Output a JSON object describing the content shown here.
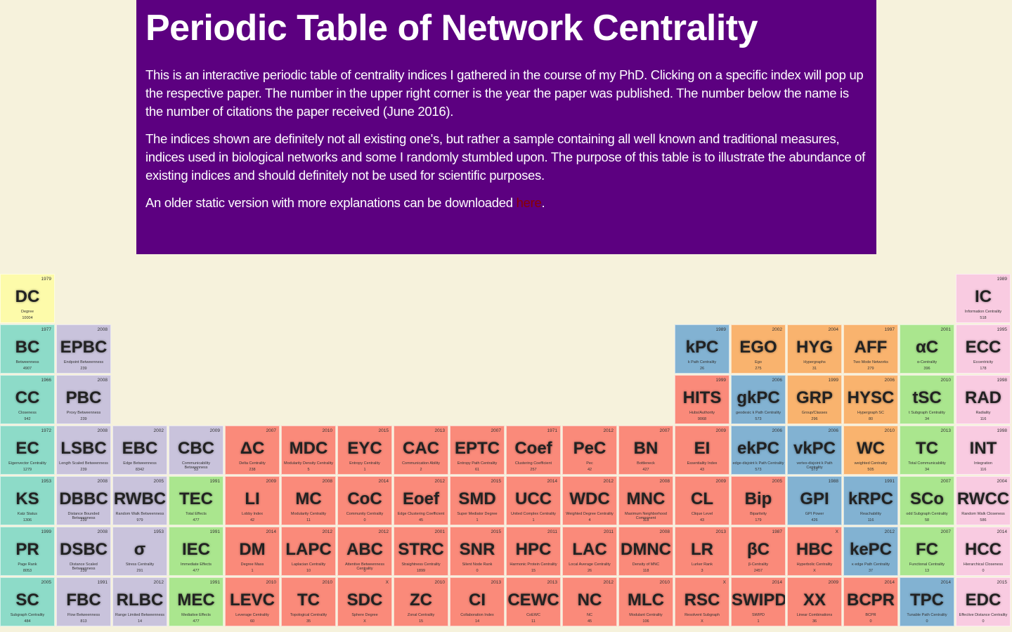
{
  "header": {
    "title": "Periodic Table of Network Centrality",
    "paragraphs": [
      "This is an interactive periodic table of centrality indices I gathered in the course of my PhD. Clicking on a specific index will pop up the respective paper. The number in the upper right corner is the year the paper was published. The number below the name is the number of citations the paper received (June 2016).",
      "The indices shown are definitely not all existing one's, but rather a sample containing all well known and traditional measures, indices used in biological networks and some I randomly stumbled upon. The purpose of this table is to illustrate the abundance of existing indices and should definitely not be used for scientific purposes."
    ],
    "download": {
      "text": "An older static version with more explanations can be downloaded ",
      "link": "here",
      "end": "."
    }
  },
  "table": {
    "rows": [
      [
        {
          "symbol": "DC",
          "year": "1979",
          "name": "Degree",
          "citations": "10004",
          "color": "#fdfbaa"
        },
        null,
        null,
        null,
        null,
        null,
        null,
        null,
        null,
        null,
        null,
        null,
        null,
        null,
        null,
        null,
        null,
        {
          "symbol": "IC",
          "year": "1989",
          "name": "Information Centrality",
          "citations": "518",
          "color": "#f9cbe1"
        }
      ],
      [
        {
          "symbol": "BC",
          "year": "1977",
          "name": "Betweenness",
          "citations": "4907",
          "color": "#8ddbc8"
        },
        {
          "symbol": "EPBC",
          "year": "2008",
          "name": "Endpoint Betweenness",
          "citations": "239",
          "color": "#c9c3dc"
        },
        null,
        null,
        null,
        null,
        null,
        null,
        null,
        null,
        null,
        null,
        {
          "symbol": "kPC",
          "year": "1989",
          "name": "k Path Centrality",
          "citations": "26",
          "color": "#82b2d2"
        },
        {
          "symbol": "EGO",
          "year": "2002",
          "name": "Ego",
          "citations": "275",
          "color": "#f9b36e"
        },
        {
          "symbol": "HYG",
          "year": "2004",
          "name": "Hypergraphs",
          "citations": "31",
          "color": "#f9b36e"
        },
        {
          "symbol": "AFF",
          "year": "1997",
          "name": "Two Mode Networks",
          "citations": "279",
          "color": "#f9b36e"
        },
        {
          "symbol": "αC",
          "year": "2001",
          "name": "α-Centrality",
          "citations": "396",
          "color": "#aae68e"
        },
        {
          "symbol": "ECC",
          "year": "1995",
          "name": "Eccentricity",
          "citations": "178",
          "color": "#f9cbe1"
        }
      ],
      [
        {
          "symbol": "CC",
          "year": "1966",
          "name": "Closeness",
          "citations": "942",
          "color": "#8ddbc8"
        },
        {
          "symbol": "PBC",
          "year": "2008",
          "name": "Proxy Betweenness",
          "citations": "239",
          "color": "#c9c3dc"
        },
        null,
        null,
        null,
        null,
        null,
        null,
        null,
        null,
        null,
        null,
        {
          "symbol": "HITS",
          "year": "1999",
          "name": "Hubs/Authority",
          "citations": "9068",
          "color": "#fa8a7a"
        },
        {
          "symbol": "gkPC",
          "year": "2006",
          "name": "geodesic k Path Centrality",
          "citations": "573",
          "color": "#82b2d2"
        },
        {
          "symbol": "GRP",
          "year": "1999",
          "name": "Group/Classes",
          "citations": "296",
          "color": "#f9b36e"
        },
        {
          "symbol": "HYSC",
          "year": "2006",
          "name": "Hypergraph SC",
          "citations": "80",
          "color": "#f9b36e"
        },
        {
          "symbol": "tSC",
          "year": "2010",
          "name": "t Subgraph Centrality",
          "citations": "34",
          "color": "#aae68e"
        },
        {
          "symbol": "RAD",
          "year": "1998",
          "name": "Radiality",
          "citations": "116",
          "color": "#f9cbe1"
        }
      ],
      [
        {
          "symbol": "EC",
          "year": "1972",
          "name": "Eigenvector Centrality",
          "citations": "1279",
          "color": "#8ddbc8"
        },
        {
          "symbol": "LSBC",
          "year": "2008",
          "name": "Length Scaled Betweenness",
          "citations": "239",
          "color": "#c9c3dc"
        },
        {
          "symbol": "EBC",
          "year": "2002",
          "name": "Edge Betweenness",
          "citations": "8342",
          "color": "#c9c3dc"
        },
        {
          "symbol": "CBC",
          "year": "2009",
          "name": "Communicability Betweenness",
          "citations": "53",
          "color": "#c9c3dc"
        },
        {
          "symbol": "ΔC",
          "year": "2007",
          "name": "Delta Centrality",
          "citations": "238",
          "color": "#fa8a7a"
        },
        {
          "symbol": "MDC",
          "year": "2010",
          "name": "Modularity Density Centrality",
          "citations": "5",
          "color": "#fa8a7a"
        },
        {
          "symbol": "EYC",
          "year": "2015",
          "name": "Entropy Centrality",
          "citations": "1",
          "color": "#fa8a7a"
        },
        {
          "symbol": "CAC",
          "year": "2013",
          "name": "Communication Ability",
          "citations": "2",
          "color": "#fa8a7a"
        },
        {
          "symbol": "EPTC",
          "year": "2007",
          "name": "Entropy Path Centrality",
          "citations": "61",
          "color": "#fa8a7a"
        },
        {
          "symbol": "Coef",
          "year": "1971",
          "name": "Clustering Coefficient",
          "citations": "257",
          "color": "#fa8a7a"
        },
        {
          "symbol": "PeC",
          "year": "2012",
          "name": "Pec",
          "citations": "42",
          "color": "#fa8a7a"
        },
        {
          "symbol": "BN",
          "year": "2007",
          "name": "Bottleneck",
          "citations": "427",
          "color": "#fa8a7a"
        },
        {
          "symbol": "EI",
          "year": "2009",
          "name": "Essentiality Index",
          "citations": "43",
          "color": "#fa8a7a"
        },
        {
          "symbol": "ekPC",
          "year": "2006",
          "name": "edge-disjoint k Path Centrality",
          "citations": "573",
          "color": "#82b2d2"
        },
        {
          "symbol": "vkPC",
          "year": "2006",
          "name": "vertex-disjoint k Path Centrality",
          "citations": "573",
          "color": "#82b2d2"
        },
        {
          "symbol": "WC",
          "year": "2010",
          "name": "weighted Centrality",
          "citations": "505",
          "color": "#f9b36e"
        },
        {
          "symbol": "TC",
          "year": "2013",
          "name": "Total Communicability",
          "citations": "34",
          "color": "#aae68e"
        },
        {
          "symbol": "INT",
          "year": "1998",
          "name": "Integration",
          "citations": "116",
          "color": "#f9cbe1"
        }
      ],
      [
        {
          "symbol": "KS",
          "year": "1953",
          "name": "Katz Status",
          "citations": "1306",
          "color": "#8ddbc8"
        },
        {
          "symbol": "DBBC",
          "year": "2008",
          "name": "Distance Bounded Betweenness",
          "citations": "239",
          "color": "#c9c3dc"
        },
        {
          "symbol": "RWBC",
          "year": "2005",
          "name": "Random Walk Betweenness",
          "citations": "979",
          "color": "#c9c3dc"
        },
        {
          "symbol": "TEC",
          "year": "1991",
          "name": "Total Effects",
          "citations": "477",
          "color": "#aae68e"
        },
        {
          "symbol": "LI",
          "year": "2009",
          "name": "Lobby Index",
          "citations": "42",
          "color": "#fa8a7a"
        },
        {
          "symbol": "MC",
          "year": "2008",
          "name": "Modularity Centrality",
          "citations": "11",
          "color": "#fa8a7a"
        },
        {
          "symbol": "CoC",
          "year": "2014",
          "name": "Community Centrality",
          "citations": "0",
          "color": "#fa8a7a"
        },
        {
          "symbol": "Eoef",
          "year": "2012",
          "name": "Edge Clustering Coefficient",
          "citations": "45",
          "color": "#fa8a7a"
        },
        {
          "symbol": "SMD",
          "year": "2015",
          "name": "Super Mediator Degree",
          "citations": "1",
          "color": "#fa8a7a"
        },
        {
          "symbol": "UCC",
          "year": "2014",
          "name": "United Complex Centrality",
          "citations": "1",
          "color": "#fa8a7a"
        },
        {
          "symbol": "WDC",
          "year": "2012",
          "name": "Weighted Degree Centrality",
          "citations": "4",
          "color": "#fa8a7a"
        },
        {
          "symbol": "MNC",
          "year": "2008",
          "name": "Maximum Neighborhood Component",
          "citations": "118",
          "color": "#fa8a7a"
        },
        {
          "symbol": "CL",
          "year": "2009",
          "name": "Clique Level",
          "citations": "43",
          "color": "#fa8a7a"
        },
        {
          "symbol": "Bip",
          "year": "2005",
          "name": "Bipartivity",
          "citations": "179",
          "color": "#fa8a7a"
        },
        {
          "symbol": "GPI",
          "year": "1988",
          "name": "GPI Power",
          "citations": "426",
          "color": "#82b2d2"
        },
        {
          "symbol": "kRPC",
          "year": "1991",
          "name": "Reachability",
          "citations": "116",
          "color": "#82b2d2"
        },
        {
          "symbol": "SCo",
          "year": "2007",
          "name": "odd Subgraph Centrality",
          "citations": "58",
          "color": "#aae68e"
        },
        {
          "symbol": "RWCC",
          "year": "2004",
          "name": "Random Walk Closeness",
          "citations": "586",
          "color": "#f9cbe1"
        }
      ],
      [
        {
          "symbol": "PR",
          "year": "1999",
          "name": "Page Rank",
          "citations": "8053",
          "color": "#8ddbc8"
        },
        {
          "symbol": "DSBC",
          "year": "2008",
          "name": "Distance Scaled Betweenness",
          "citations": "239",
          "color": "#c9c3dc"
        },
        {
          "symbol": "σ",
          "year": "1953",
          "name": "Stress Centrality",
          "citations": "291",
          "color": "#c9c3dc"
        },
        {
          "symbol": "IEC",
          "year": "1991",
          "name": "Immediate Effects",
          "citations": "477",
          "color": "#aae68e"
        },
        {
          "symbol": "DM",
          "year": "2014",
          "name": "Degree Mass",
          "citations": "1",
          "color": "#fa8a7a"
        },
        {
          "symbol": "LAPC",
          "year": "2012",
          "name": "Laplacian Centrality",
          "citations": "10",
          "color": "#fa8a7a"
        },
        {
          "symbol": "ABC",
          "year": "2012",
          "name": "Attentive Betweenness Centrality",
          "citations": "0",
          "color": "#fa8a7a"
        },
        {
          "symbol": "STRC",
          "year": "2001",
          "name": "Straightness Centrality",
          "citations": "1899",
          "color": "#fa8a7a"
        },
        {
          "symbol": "SNR",
          "year": "2015",
          "name": "Silent Node Rank",
          "citations": "0",
          "color": "#fa8a7a"
        },
        {
          "symbol": "HPC",
          "year": "2011",
          "name": "Harmonic Protein Centrality",
          "citations": "15",
          "color": "#fa8a7a"
        },
        {
          "symbol": "LAC",
          "year": "2011",
          "name": "Local Average Centrality",
          "citations": "26",
          "color": "#fa8a7a"
        },
        {
          "symbol": "DMNC",
          "year": "2008",
          "name": "Density of MNC",
          "citations": "118",
          "color": "#fa8a7a"
        },
        {
          "symbol": "LR",
          "year": "2013",
          "name": "Lurker Rank",
          "citations": "3",
          "color": "#fa8a7a"
        },
        {
          "symbol": "βC",
          "year": "1987",
          "name": "β-Centrality",
          "citations": "2457",
          "color": "#fa8a7a"
        },
        {
          "symbol": "HBC",
          "year": "X",
          "name": "Hyperbolic Centrality",
          "citations": "X",
          "color": "#fa8a7a"
        },
        {
          "symbol": "kePC",
          "year": "2012",
          "name": "κ edge Path Centrality",
          "citations": "37",
          "color": "#82b2d2"
        },
        {
          "symbol": "FC",
          "year": "2007",
          "name": "Functional Centrality",
          "citations": "13",
          "color": "#aae68e"
        },
        {
          "symbol": "HCC",
          "year": "2014",
          "name": "Hierarchical Closeness",
          "citations": "0",
          "color": "#f9cbe1"
        }
      ],
      [
        {
          "symbol": "SC",
          "year": "2005",
          "name": "Subgraph Centrality",
          "citations": "484",
          "color": "#8ddbc8"
        },
        {
          "symbol": "FBC",
          "year": "1991",
          "name": "Flow Betweenness",
          "citations": "813",
          "color": "#c9c3dc"
        },
        {
          "symbol": "RLBC",
          "year": "2012",
          "name": "Range Limited Betweenness",
          "citations": "14",
          "color": "#c9c3dc"
        },
        {
          "symbol": "MEC",
          "year": "1991",
          "name": "Mediative Effects",
          "citations": "477",
          "color": "#aae68e"
        },
        {
          "symbol": "LEVC",
          "year": "2010",
          "name": "Leverage Centrality",
          "citations": "60",
          "color": "#fa8a7a"
        },
        {
          "symbol": "TC",
          "year": "2010",
          "name": "Topological Centrality",
          "citations": "35",
          "color": "#fa8a7a"
        },
        {
          "symbol": "SDC",
          "year": "X",
          "name": "Sphere Degree",
          "citations": "X",
          "color": "#fa8a7a"
        },
        {
          "symbol": "ZC",
          "year": "2010",
          "name": "Zonal Centrality",
          "citations": "15",
          "color": "#fa8a7a"
        },
        {
          "symbol": "CI",
          "year": "2013",
          "name": "Collaboration Index",
          "citations": "14",
          "color": "#fa8a7a"
        },
        {
          "symbol": "CEWC",
          "year": "2013",
          "name": "CoEWC",
          "citations": "11",
          "color": "#fa8a7a"
        },
        {
          "symbol": "NC",
          "year": "2012",
          "name": "NC",
          "citations": "45",
          "color": "#fa8a7a"
        },
        {
          "symbol": "MLC",
          "year": "2010",
          "name": "Modulant Centrality",
          "citations": "106",
          "color": "#fa8a7a"
        },
        {
          "symbol": "RSC",
          "year": "X",
          "name": "Resolvent Subgraph",
          "citations": "X",
          "color": "#fa8a7a"
        },
        {
          "symbol": "SWIPD",
          "year": "2014",
          "name": "SWIPD",
          "citations": "1",
          "color": "#fa8a7a"
        },
        {
          "symbol": "XX",
          "year": "2009",
          "name": "Linear Combinations",
          "citations": "36",
          "color": "#fa8a7a"
        },
        {
          "symbol": "BCPR",
          "year": "2014",
          "name": "BCPR",
          "citations": "0",
          "color": "#fa8a7a"
        },
        {
          "symbol": "TPC",
          "year": "2014",
          "name": "Tunable Path Centrality",
          "citations": "0",
          "color": "#82b2d2"
        },
        {
          "symbol": "EDC",
          "year": "2015",
          "name": "Effective Distance Centrality",
          "citations": "0",
          "color": "#f9cbe1"
        }
      ]
    ]
  }
}
